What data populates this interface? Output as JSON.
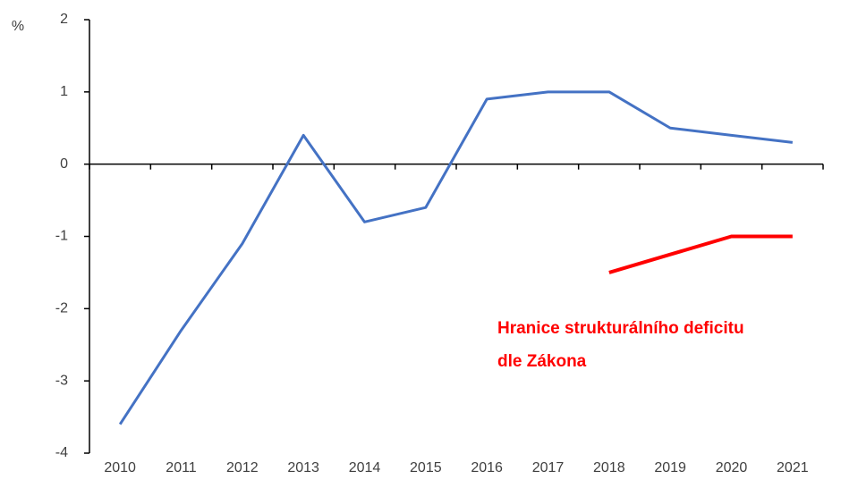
{
  "chart_data": {
    "type": "line",
    "y_axis_label": "%",
    "categories": [
      "2010",
      "2011",
      "2012",
      "2013",
      "2014",
      "2015",
      "2016",
      "2017",
      "2018",
      "2019",
      "2020",
      "2021"
    ],
    "series": [
      {
        "color": "#4472c4",
        "values": [
          -3.6,
          -2.3,
          -1.1,
          0.4,
          -0.8,
          -0.6,
          0.9,
          1.0,
          1.0,
          0.5,
          0.4,
          0.3
        ]
      },
      {
        "color": "#ff0000",
        "values": [
          null,
          null,
          null,
          null,
          null,
          null,
          null,
          null,
          -1.5,
          -1.25,
          -1.0,
          -1.0
        ]
      }
    ],
    "annotation": [
      "Hranice strukturálního deficitu",
      "dle Zákona"
    ],
    "ylim": [
      -4,
      2
    ],
    "yticks": [
      -4,
      -3,
      -2,
      -1,
      0,
      1,
      2
    ]
  }
}
